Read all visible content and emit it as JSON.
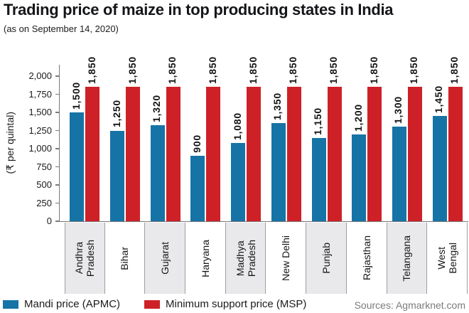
{
  "header": {
    "title": "Trading price of maize in top producing states in India",
    "subtitle": "(as on September 14, 2020)"
  },
  "chart_data": {
    "type": "bar",
    "title": "Trading price of maize in top producing states in India",
    "subtitle": "(as on September 14, 2020)",
    "ylabel": "(₹ per quintal)",
    "xlabel": "",
    "ylim": [
      0,
      2000
    ],
    "ytick_step": 250,
    "yticks": [
      0,
      250,
      500,
      750,
      1000,
      1250,
      1500,
      1750,
      2000
    ],
    "grid": false,
    "legend_position": "bottom",
    "categories": [
      "Andhra Pradesh",
      "Bihar",
      "Gujarat",
      "Haryana",
      "Madhya Pradesh",
      "New Delhi",
      "Punjab",
      "Rajasthan",
      "Telangana",
      "West Bengal"
    ],
    "series": [
      {
        "name": "Mandi price (APMC)",
        "color": "#1673a6",
        "values": [
          1500,
          1250,
          1320,
          900,
          1080,
          1350,
          1150,
          1200,
          1300,
          1450
        ]
      },
      {
        "name": "Minimum support price (MSP)",
        "color": "#cd2127",
        "values": [
          1850,
          1850,
          1850,
          1850,
          1850,
          1850,
          1850,
          1850,
          1850,
          1850
        ]
      }
    ]
  },
  "source": {
    "text": "Sources: Agmarknet.com"
  },
  "colors": {
    "mandi_blue": "#1673a6",
    "msp_red": "#cd2127",
    "band_gray": "#e9e9eb",
    "axis_gray": "#7a7a7a",
    "separator_gray": "#9e9e9e",
    "source_text": "#7b7b7b"
  }
}
